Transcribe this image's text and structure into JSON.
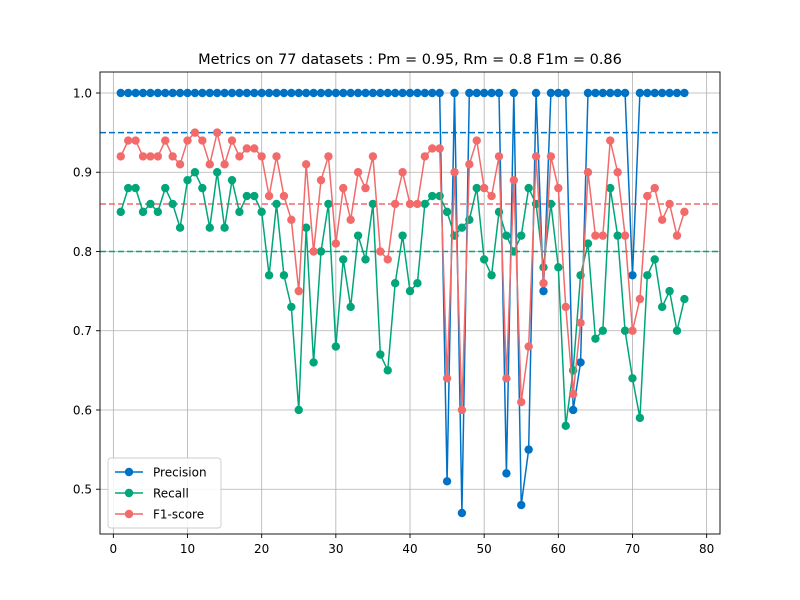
{
  "chart_data": {
    "type": "line",
    "title": "Metrics on 77 datasets : Pm = 0.95, Rm = 0.8 F1m  = 0.86",
    "xlabel": "",
    "ylabel": "",
    "xlim": [
      -1.8,
      81.8
    ],
    "ylim": [
      0.4435,
      1.0265
    ],
    "xticks": [
      0,
      10,
      20,
      30,
      40,
      50,
      60,
      70,
      80
    ],
    "yticks": [
      0.5,
      0.6,
      0.7,
      0.8,
      0.9,
      1.0
    ],
    "ytick_labels": [
      "0.5",
      "0.6",
      "0.7",
      "0.8",
      "0.9",
      "1.0"
    ],
    "grid": true,
    "legend_position": "lower-left",
    "x": [
      1,
      2,
      3,
      4,
      5,
      6,
      7,
      8,
      9,
      10,
      11,
      12,
      13,
      14,
      15,
      16,
      17,
      18,
      19,
      20,
      21,
      22,
      23,
      24,
      25,
      26,
      27,
      28,
      29,
      30,
      31,
      32,
      33,
      34,
      35,
      36,
      37,
      38,
      39,
      40,
      41,
      42,
      43,
      44,
      45,
      46,
      47,
      48,
      49,
      50,
      51,
      52,
      53,
      54,
      55,
      56,
      57,
      58,
      59,
      60,
      61,
      62,
      63,
      64,
      65,
      66,
      67,
      68,
      69,
      70,
      71,
      72,
      73,
      74,
      75,
      76,
      77
    ],
    "series": [
      {
        "name": "Precision",
        "color": "#0072c6",
        "values": [
          1,
          1,
          1,
          1,
          1,
          1,
          1,
          1,
          1,
          1,
          1,
          1,
          1,
          1,
          1,
          1,
          1,
          1,
          1,
          1,
          1,
          1,
          1,
          1,
          1,
          1,
          1,
          1,
          1,
          1,
          1,
          1,
          1,
          1,
          1,
          1,
          1,
          1,
          1,
          1,
          1,
          1,
          1,
          1,
          0.51,
          1,
          0.47,
          1,
          1,
          1,
          1,
          1,
          0.52,
          1,
          0.48,
          0.55,
          1,
          0.75,
          1,
          1,
          1,
          0.6,
          0.66,
          1,
          1,
          1,
          1,
          1,
          1,
          0.77,
          1,
          1,
          1,
          1,
          1,
          1,
          1
        ]
      },
      {
        "name": "Recall",
        "color": "#00a67a",
        "values": [
          0.85,
          0.88,
          0.88,
          0.85,
          0.86,
          0.85,
          0.88,
          0.86,
          0.83,
          0.89,
          0.9,
          0.88,
          0.83,
          0.9,
          0.83,
          0.89,
          0.85,
          0.87,
          0.87,
          0.85,
          0.77,
          0.86,
          0.77,
          0.73,
          0.6,
          0.83,
          0.66,
          0.8,
          0.86,
          0.68,
          0.79,
          0.73,
          0.82,
          0.79,
          0.86,
          0.67,
          0.65,
          0.76,
          0.82,
          0.75,
          0.76,
          0.86,
          0.87,
          0.87,
          0.85,
          0.82,
          0.83,
          0.84,
          0.88,
          0.79,
          0.77,
          0.85,
          0.82,
          0.8,
          0.82,
          0.88,
          0.86,
          0.78,
          0.86,
          0.78,
          0.58,
          0.65,
          0.77,
          0.81,
          0.69,
          0.7,
          0.88,
          0.82,
          0.7,
          0.64,
          0.59,
          0.77,
          0.79,
          0.73,
          0.75,
          0.7,
          0.74
        ]
      },
      {
        "name": "F1-score",
        "color": "#f26a6a",
        "values": [
          0.92,
          0.94,
          0.94,
          0.92,
          0.92,
          0.92,
          0.94,
          0.92,
          0.91,
          0.94,
          0.95,
          0.94,
          0.91,
          0.95,
          0.91,
          0.94,
          0.92,
          0.93,
          0.93,
          0.92,
          0.87,
          0.92,
          0.87,
          0.84,
          0.75,
          0.91,
          0.8,
          0.89,
          0.92,
          0.81,
          0.88,
          0.84,
          0.9,
          0.88,
          0.92,
          0.8,
          0.79,
          0.86,
          0.9,
          0.86,
          0.86,
          0.92,
          0.93,
          0.93,
          0.64,
          0.9,
          0.6,
          0.91,
          0.94,
          0.88,
          0.87,
          0.92,
          0.64,
          0.89,
          0.61,
          0.68,
          0.92,
          0.76,
          0.92,
          0.88,
          0.73,
          0.62,
          0.71,
          0.9,
          0.82,
          0.82,
          0.94,
          0.9,
          0.82,
          0.7,
          0.74,
          0.87,
          0.88,
          0.84,
          0.86,
          0.82,
          0.85
        ]
      }
    ],
    "reference_lines": [
      {
        "value": 0.95,
        "color": "#0072c6"
      },
      {
        "value": 0.86,
        "color": "#f26a6a"
      },
      {
        "value": 0.8,
        "color": "#00a67a"
      }
    ]
  }
}
